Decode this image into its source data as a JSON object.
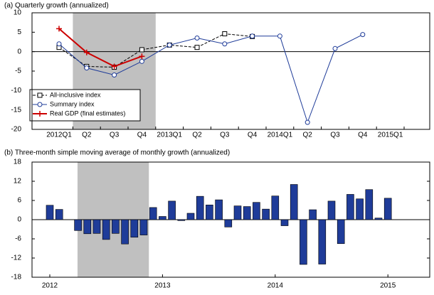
{
  "chart_data": [
    {
      "type": "line",
      "title": "(a) Quarterly growth (annualized)",
      "categories": [
        "2012Q1",
        "Q2",
        "Q3",
        "Q4",
        "2013Q1",
        "Q2",
        "Q3",
        "Q4",
        "2014Q1",
        "Q2",
        "Q3",
        "Q4",
        "2015Q1"
      ],
      "series": [
        {
          "name": "All-inclusive index",
          "color": "#000000",
          "dashed": true,
          "marker": "square",
          "values": [
            1.1,
            -3.8,
            -4.0,
            0.5,
            1.7,
            1.1,
            4.6,
            3.9,
            null,
            null,
            null,
            null,
            null
          ]
        },
        {
          "name": "Summary index",
          "color": "#1f3c99",
          "dashed": false,
          "marker": "circle",
          "values": [
            2.0,
            -4.2,
            -6.0,
            -2.5,
            1.7,
            3.5,
            2.0,
            4.0,
            4.0,
            -18.2,
            0.8,
            4.4,
            null
          ]
        },
        {
          "name": "Real GDP (final estimates)",
          "color": "#cc0000",
          "dashed": false,
          "marker": "plus",
          "values": [
            5.9,
            -0.2,
            -3.8,
            -1.2,
            null,
            null,
            null,
            null,
            null,
            null,
            null,
            null,
            null
          ]
        }
      ],
      "ylim": [
        -20,
        10
      ],
      "yticks": [
        -20,
        -15,
        -10,
        -5,
        0,
        5,
        10
      ],
      "legend": "lower left"
    },
    {
      "type": "bar",
      "title": "(b) Three-month simple moving average of monthly growth (annualized)",
      "categories": [
        "2012",
        null,
        null,
        null,
        null,
        null,
        null,
        null,
        null,
        null,
        null,
        null,
        "2013",
        null,
        null,
        null,
        null,
        null,
        null,
        null,
        null,
        null,
        null,
        null,
        "2014",
        null,
        null,
        null,
        null,
        null,
        null,
        null,
        null,
        null,
        null,
        null,
        "2015"
      ],
      "values": [
        4.5,
        3.2,
        0,
        -3.4,
        -4.4,
        -4.3,
        -6.2,
        -4.3,
        -7.6,
        -5.5,
        -4.8,
        3.8,
        1.0,
        5.8,
        -0.3,
        2.0,
        7.3,
        4.6,
        6.2,
        -2.3,
        4.3,
        4.1,
        5.4,
        3.3,
        7.4,
        -1.9,
        11.0,
        -14.0,
        3.1,
        -13.9,
        5.8,
        -7.5,
        7.9,
        6.5,
        9.4,
        0.5,
        6.7
      ],
      "color": "#1f3c99",
      "ylim": [
        -18,
        18
      ],
      "yticks": [
        -18,
        -12,
        -6,
        0,
        6,
        12,
        18
      ]
    }
  ]
}
